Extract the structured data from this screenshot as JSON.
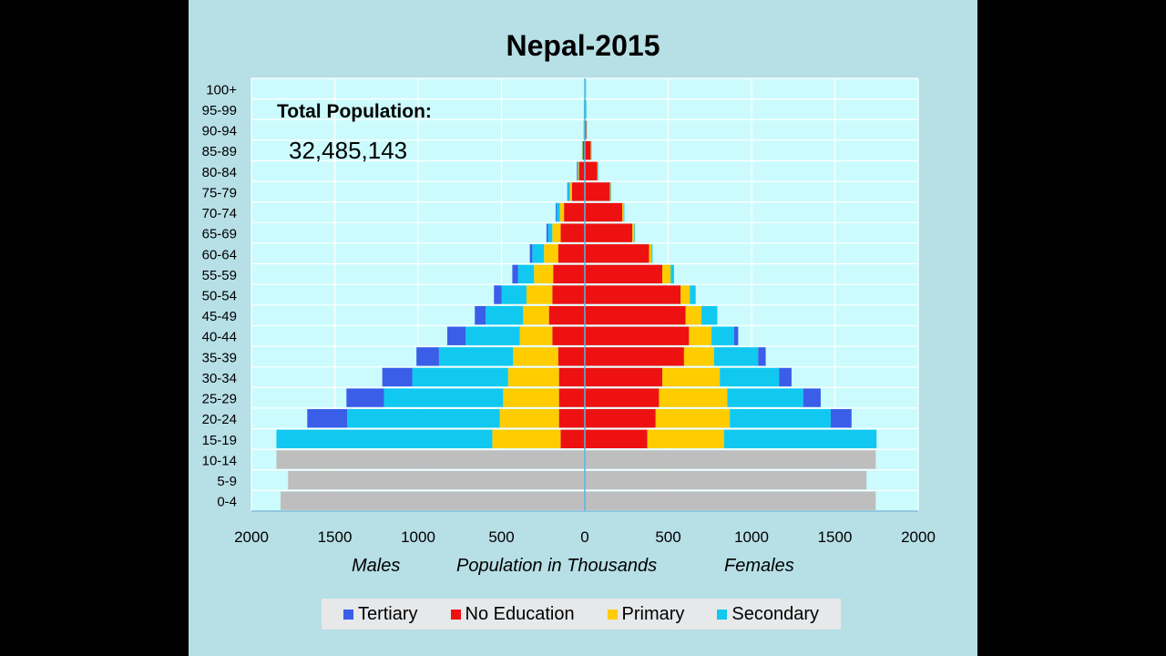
{
  "chart_data": {
    "type": "bar",
    "title": "Nepal-2015",
    "total_label": "Total Population:",
    "total_value": "32,485,143",
    "xlabel": "Population in Thousands",
    "left_label": "Males",
    "right_label": "Females",
    "xlim": [
      -2000,
      2000
    ],
    "xticks": [
      -2000,
      -1500,
      -1000,
      -500,
      0,
      500,
      1000,
      1500,
      2000
    ],
    "xtick_labels": [
      "2000",
      "1500",
      "1000",
      "500",
      "0",
      "500",
      "1000",
      "1500",
      "2000"
    ],
    "categories": [
      "100+",
      "95-99",
      "90-94",
      "85-89",
      "80-84",
      "75-79",
      "70-74",
      "65-69",
      "60-64",
      "55-59",
      "50-54",
      "45-49",
      "40-44",
      "35-39",
      "30-34",
      "25-29",
      "20-24",
      "15-19",
      "10-14",
      "5-9",
      "0-4"
    ],
    "series_order": [
      "No Education",
      "Primary",
      "Secondary",
      "Tertiary"
    ],
    "colors": {
      "No Education": "#ee1111",
      "Primary": "#ffcc00",
      "Secondary": "#11c8f0",
      "Tertiary": "#3a5ee8",
      "Total": "#bebebe"
    },
    "legend": [
      "Tertiary",
      "No Education",
      "Primary",
      "Secondary"
    ],
    "males": {
      "No Education": [
        2,
        4,
        5,
        12,
        35,
        78,
        125,
        145,
        160,
        190,
        195,
        215,
        195,
        160,
        155,
        155,
        155,
        145,
        null,
        null,
        null
      ],
      "Primary": [
        0,
        1,
        1,
        2,
        5,
        12,
        25,
        50,
        85,
        115,
        155,
        155,
        195,
        270,
        305,
        335,
        355,
        410,
        null,
        null,
        null
      ],
      "Secondary": [
        0,
        1,
        1,
        3,
        6,
        12,
        20,
        25,
        70,
        95,
        150,
        225,
        325,
        445,
        575,
        715,
        915,
        1295,
        null,
        null,
        null
      ],
      "Tertiary": [
        0,
        0,
        0,
        0,
        2,
        3,
        5,
        10,
        15,
        35,
        45,
        65,
        110,
        135,
        180,
        225,
        240,
        0,
        null,
        null,
        null
      ],
      "Total": [
        null,
        null,
        null,
        null,
        null,
        null,
        null,
        null,
        null,
        null,
        null,
        null,
        null,
        null,
        null,
        null,
        null,
        null,
        1850,
        1780,
        1825
      ]
    },
    "females": {
      "No Education": [
        3,
        5,
        8,
        35,
        75,
        150,
        225,
        285,
        385,
        465,
        575,
        605,
        625,
        595,
        465,
        445,
        425,
        375,
        null,
        null,
        null
      ],
      "Primary": [
        1,
        1,
        1,
        2,
        3,
        5,
        8,
        12,
        15,
        50,
        55,
        95,
        135,
        180,
        345,
        410,
        445,
        460,
        null,
        null,
        null
      ],
      "Secondary": [
        1,
        1,
        1,
        1,
        2,
        3,
        4,
        4,
        6,
        20,
        35,
        95,
        135,
        265,
        355,
        455,
        605,
        915,
        null,
        null,
        null
      ],
      "Tertiary": [
        0,
        0,
        0,
        0,
        0,
        0,
        0,
        0,
        0,
        0,
        0,
        0,
        25,
        45,
        75,
        105,
        125,
        0,
        null,
        null,
        null
      ],
      "Total": [
        null,
        null,
        null,
        null,
        null,
        null,
        null,
        null,
        null,
        null,
        null,
        null,
        null,
        null,
        null,
        null,
        null,
        null,
        1745,
        1690,
        1745
      ]
    }
  }
}
